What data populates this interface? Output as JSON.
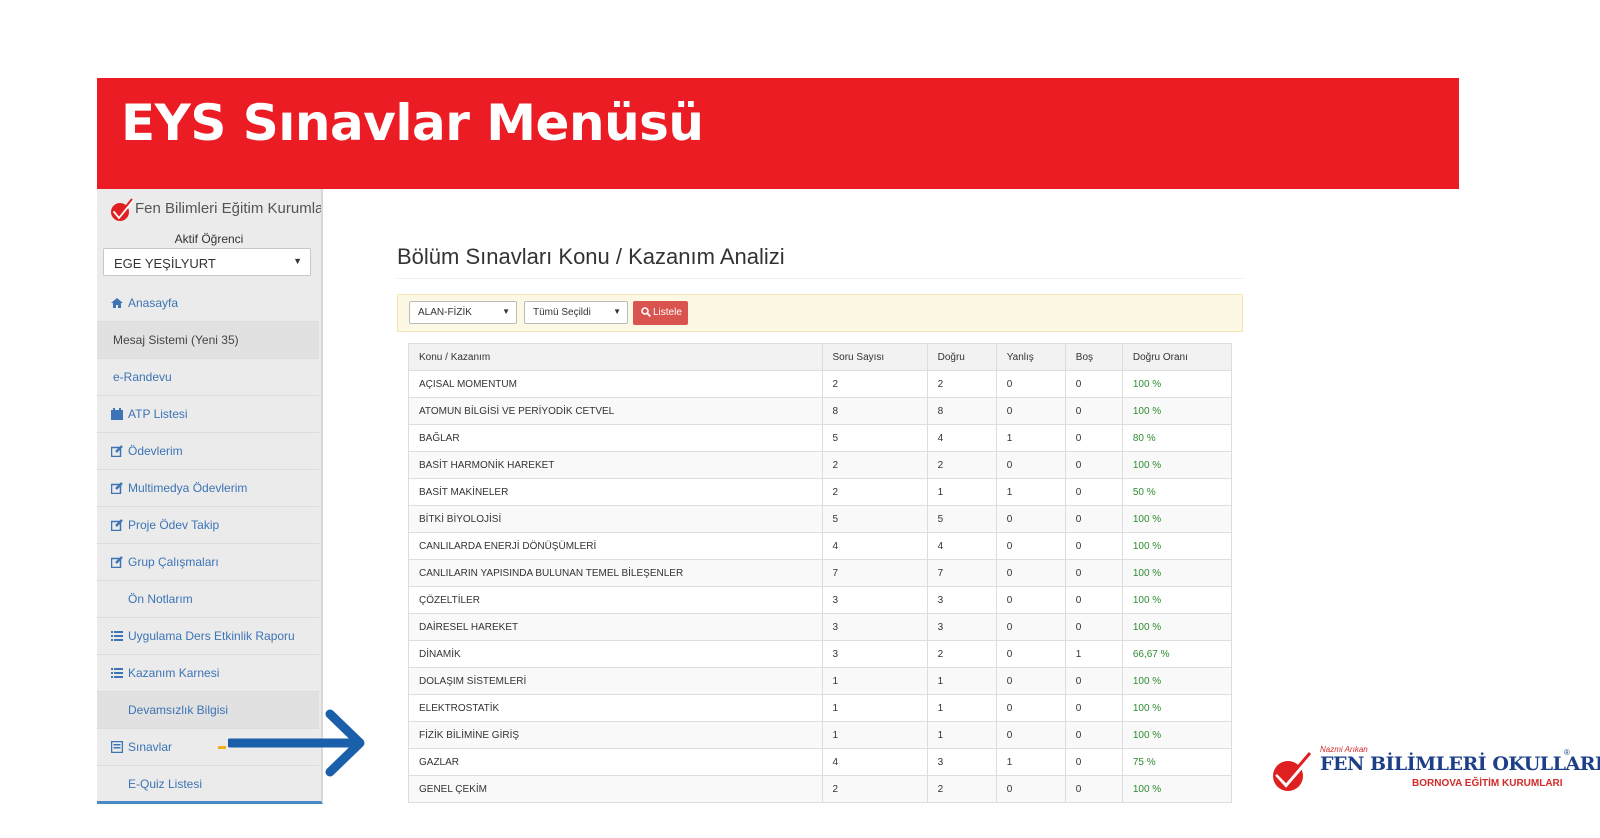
{
  "banner": {
    "title": "EYS Sınavlar Menüsü"
  },
  "sidebar": {
    "brand": "Fen Bilimleri Eğitim Kurumları",
    "active_label": "Aktif Öğrenci",
    "student": "EGE YEŞİLYURT",
    "items": [
      {
        "label": "Anasayfa",
        "icon": "home-icon"
      },
      {
        "label": "Mesaj Sistemi (Yeni 35)",
        "icon": ""
      },
      {
        "label": "e-Randevu",
        "icon": ""
      },
      {
        "label": "ATP Listesi",
        "icon": "calendar-icon"
      },
      {
        "label": "Ödevlerim",
        "icon": "edit-icon"
      },
      {
        "label": "Multimedya Ödevlerim",
        "icon": "edit-icon"
      },
      {
        "label": "Proje Ödev Takip",
        "icon": "edit-icon"
      },
      {
        "label": "Grup Çalışmaları",
        "icon": "edit-icon"
      },
      {
        "label": "Ön Notlarım",
        "icon": ""
      },
      {
        "label": "Uygulama Ders Etkinlik Raporu",
        "icon": "list-icon"
      },
      {
        "label": "Kazanım Karnesi",
        "icon": "list-icon"
      },
      {
        "label": "Devamsızlık Bilgisi",
        "icon": ""
      },
      {
        "label": "Sınavlar",
        "icon": "table-icon"
      },
      {
        "label": "E-Quiz Listesi",
        "icon": ""
      }
    ]
  },
  "main": {
    "title": "Bölüm Sınavları Konu / Kazanım Analizi",
    "filters": {
      "area": "ALAN-FİZİK",
      "selection": "Tümü Seçildi",
      "list_button": "Listele"
    },
    "table": {
      "headers": [
        "Konu / Kazanım",
        "Soru Sayısı",
        "Doğru",
        "Yanlış",
        "Boş",
        "Doğru Oranı"
      ],
      "rows": [
        [
          "AÇISAL MOMENTUM",
          "2",
          "2",
          "0",
          "0",
          "100 %"
        ],
        [
          "ATOMUN BİLGİSİ VE PERİYODİK CETVEL",
          "8",
          "8",
          "0",
          "0",
          "100 %"
        ],
        [
          "BAĞLAR",
          "5",
          "4",
          "1",
          "0",
          "80 %"
        ],
        [
          "BASİT HARMONİK HAREKET",
          "2",
          "2",
          "0",
          "0",
          "100 %"
        ],
        [
          "BASİT MAKİNELER",
          "2",
          "1",
          "1",
          "0",
          "50 %"
        ],
        [
          "BİTKİ BİYOLOJİSİ",
          "5",
          "5",
          "0",
          "0",
          "100 %"
        ],
        [
          "CANLILARDA ENERJİ DÖNÜŞÜMLERİ",
          "4",
          "4",
          "0",
          "0",
          "100 %"
        ],
        [
          "CANLILARIN YAPISINDA BULUNAN TEMEL BİLEŞENLER",
          "7",
          "7",
          "0",
          "0",
          "100 %"
        ],
        [
          "ÇÖZELTİLER",
          "3",
          "3",
          "0",
          "0",
          "100 %"
        ],
        [
          "DAİRESEL HAREKET",
          "3",
          "3",
          "0",
          "0",
          "100 %"
        ],
        [
          "DİNAMİK",
          "3",
          "2",
          "0",
          "1",
          "66,67 %"
        ],
        [
          "DOLAŞIM SİSTEMLERİ",
          "1",
          "1",
          "0",
          "0",
          "100 %"
        ],
        [
          "ELEKTROSTATİK",
          "1",
          "1",
          "0",
          "0",
          "100 %"
        ],
        [
          "FİZİK BİLİMİNE GİRİŞ",
          "1",
          "1",
          "0",
          "0",
          "100 %"
        ],
        [
          "GAZLAR",
          "4",
          "3",
          "1",
          "0",
          "75 %"
        ],
        [
          "GENEL ÇEKİM",
          "2",
          "2",
          "0",
          "0",
          "100 %"
        ]
      ]
    }
  },
  "logo": {
    "small": "Nazmi Arıkan",
    "main": "FEN BİLİMLERİ OKULLARI",
    "sub": "BORNOVA EĞİTİM KURUMLARI",
    "reg": "®"
  },
  "colors": {
    "banner": "#ec1c24",
    "link": "#3c74b5",
    "ratio": "#2e8b2e",
    "button": "#d9534f",
    "arrow": "#1b5fab"
  }
}
